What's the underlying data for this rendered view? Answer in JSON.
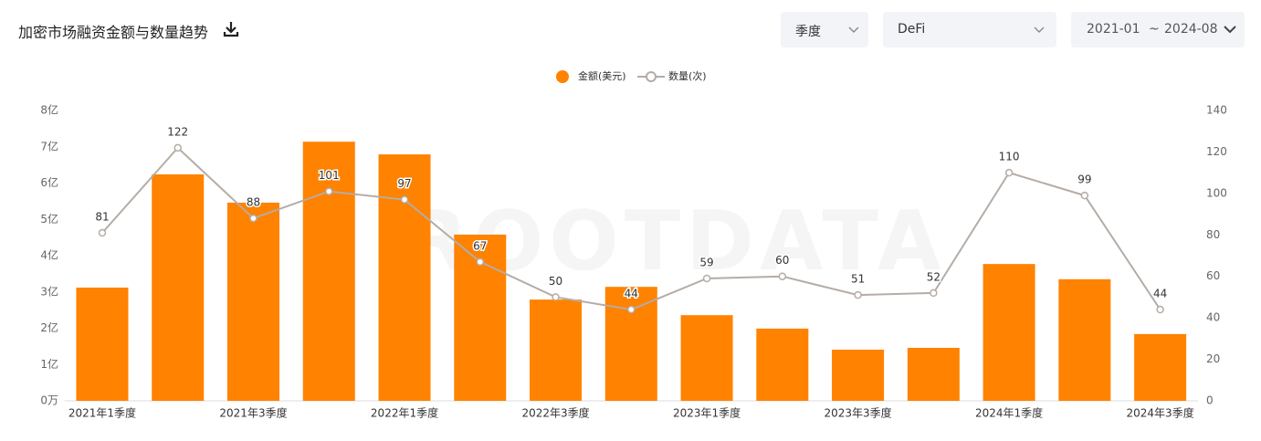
{
  "header": {
    "title": "加密市场融资金额与数量趋势"
  },
  "filters": {
    "period": "季度",
    "sector": "DeFi",
    "start": "2021-01",
    "separator": "~",
    "end": "2024-08"
  },
  "chart_data": {
    "type": "bar",
    "watermark": "ROOTDATA",
    "categories": [
      "2021年1季度",
      null,
      "2021年3季度",
      null,
      "2022年1季度",
      null,
      "2022年3季度",
      null,
      "2023年1季度",
      null,
      "2023年3季度",
      null,
      "2024年1季度",
      null,
      "2024年3季度"
    ],
    "series": [
      {
        "name": "金额(美元)",
        "type": "bar",
        "color": "#ff8200",
        "values": [
          3.12,
          6.24,
          5.46,
          7.14,
          6.79,
          4.58,
          2.79,
          3.14,
          2.36,
          1.99,
          1.41,
          1.46,
          3.77,
          3.35,
          1.84
        ]
      },
      {
        "name": "数量(次)",
        "type": "line",
        "axis": "y2",
        "color": "#b5aca6",
        "values": [
          81,
          122,
          88,
          101,
          97,
          67,
          50,
          44,
          59,
          60,
          51,
          52,
          110,
          99,
          44
        ]
      }
    ],
    "ylim": [
      0,
      8
    ],
    "yticks": [
      {
        "value": 0,
        "label": "0万"
      },
      {
        "value": 1,
        "label": "1亿"
      },
      {
        "value": 2,
        "label": "2亿"
      },
      {
        "value": 3,
        "label": "3亿"
      },
      {
        "value": 4,
        "label": "4亿"
      },
      {
        "value": 5,
        "label": "5亿"
      },
      {
        "value": 6,
        "label": "6亿"
      },
      {
        "value": 7,
        "label": "7亿"
      },
      {
        "value": 8,
        "label": "8亿"
      }
    ],
    "y2lim": [
      0,
      140
    ],
    "y2ticks": [
      0,
      20,
      40,
      60,
      80,
      100,
      120,
      140
    ],
    "legend": "top"
  }
}
